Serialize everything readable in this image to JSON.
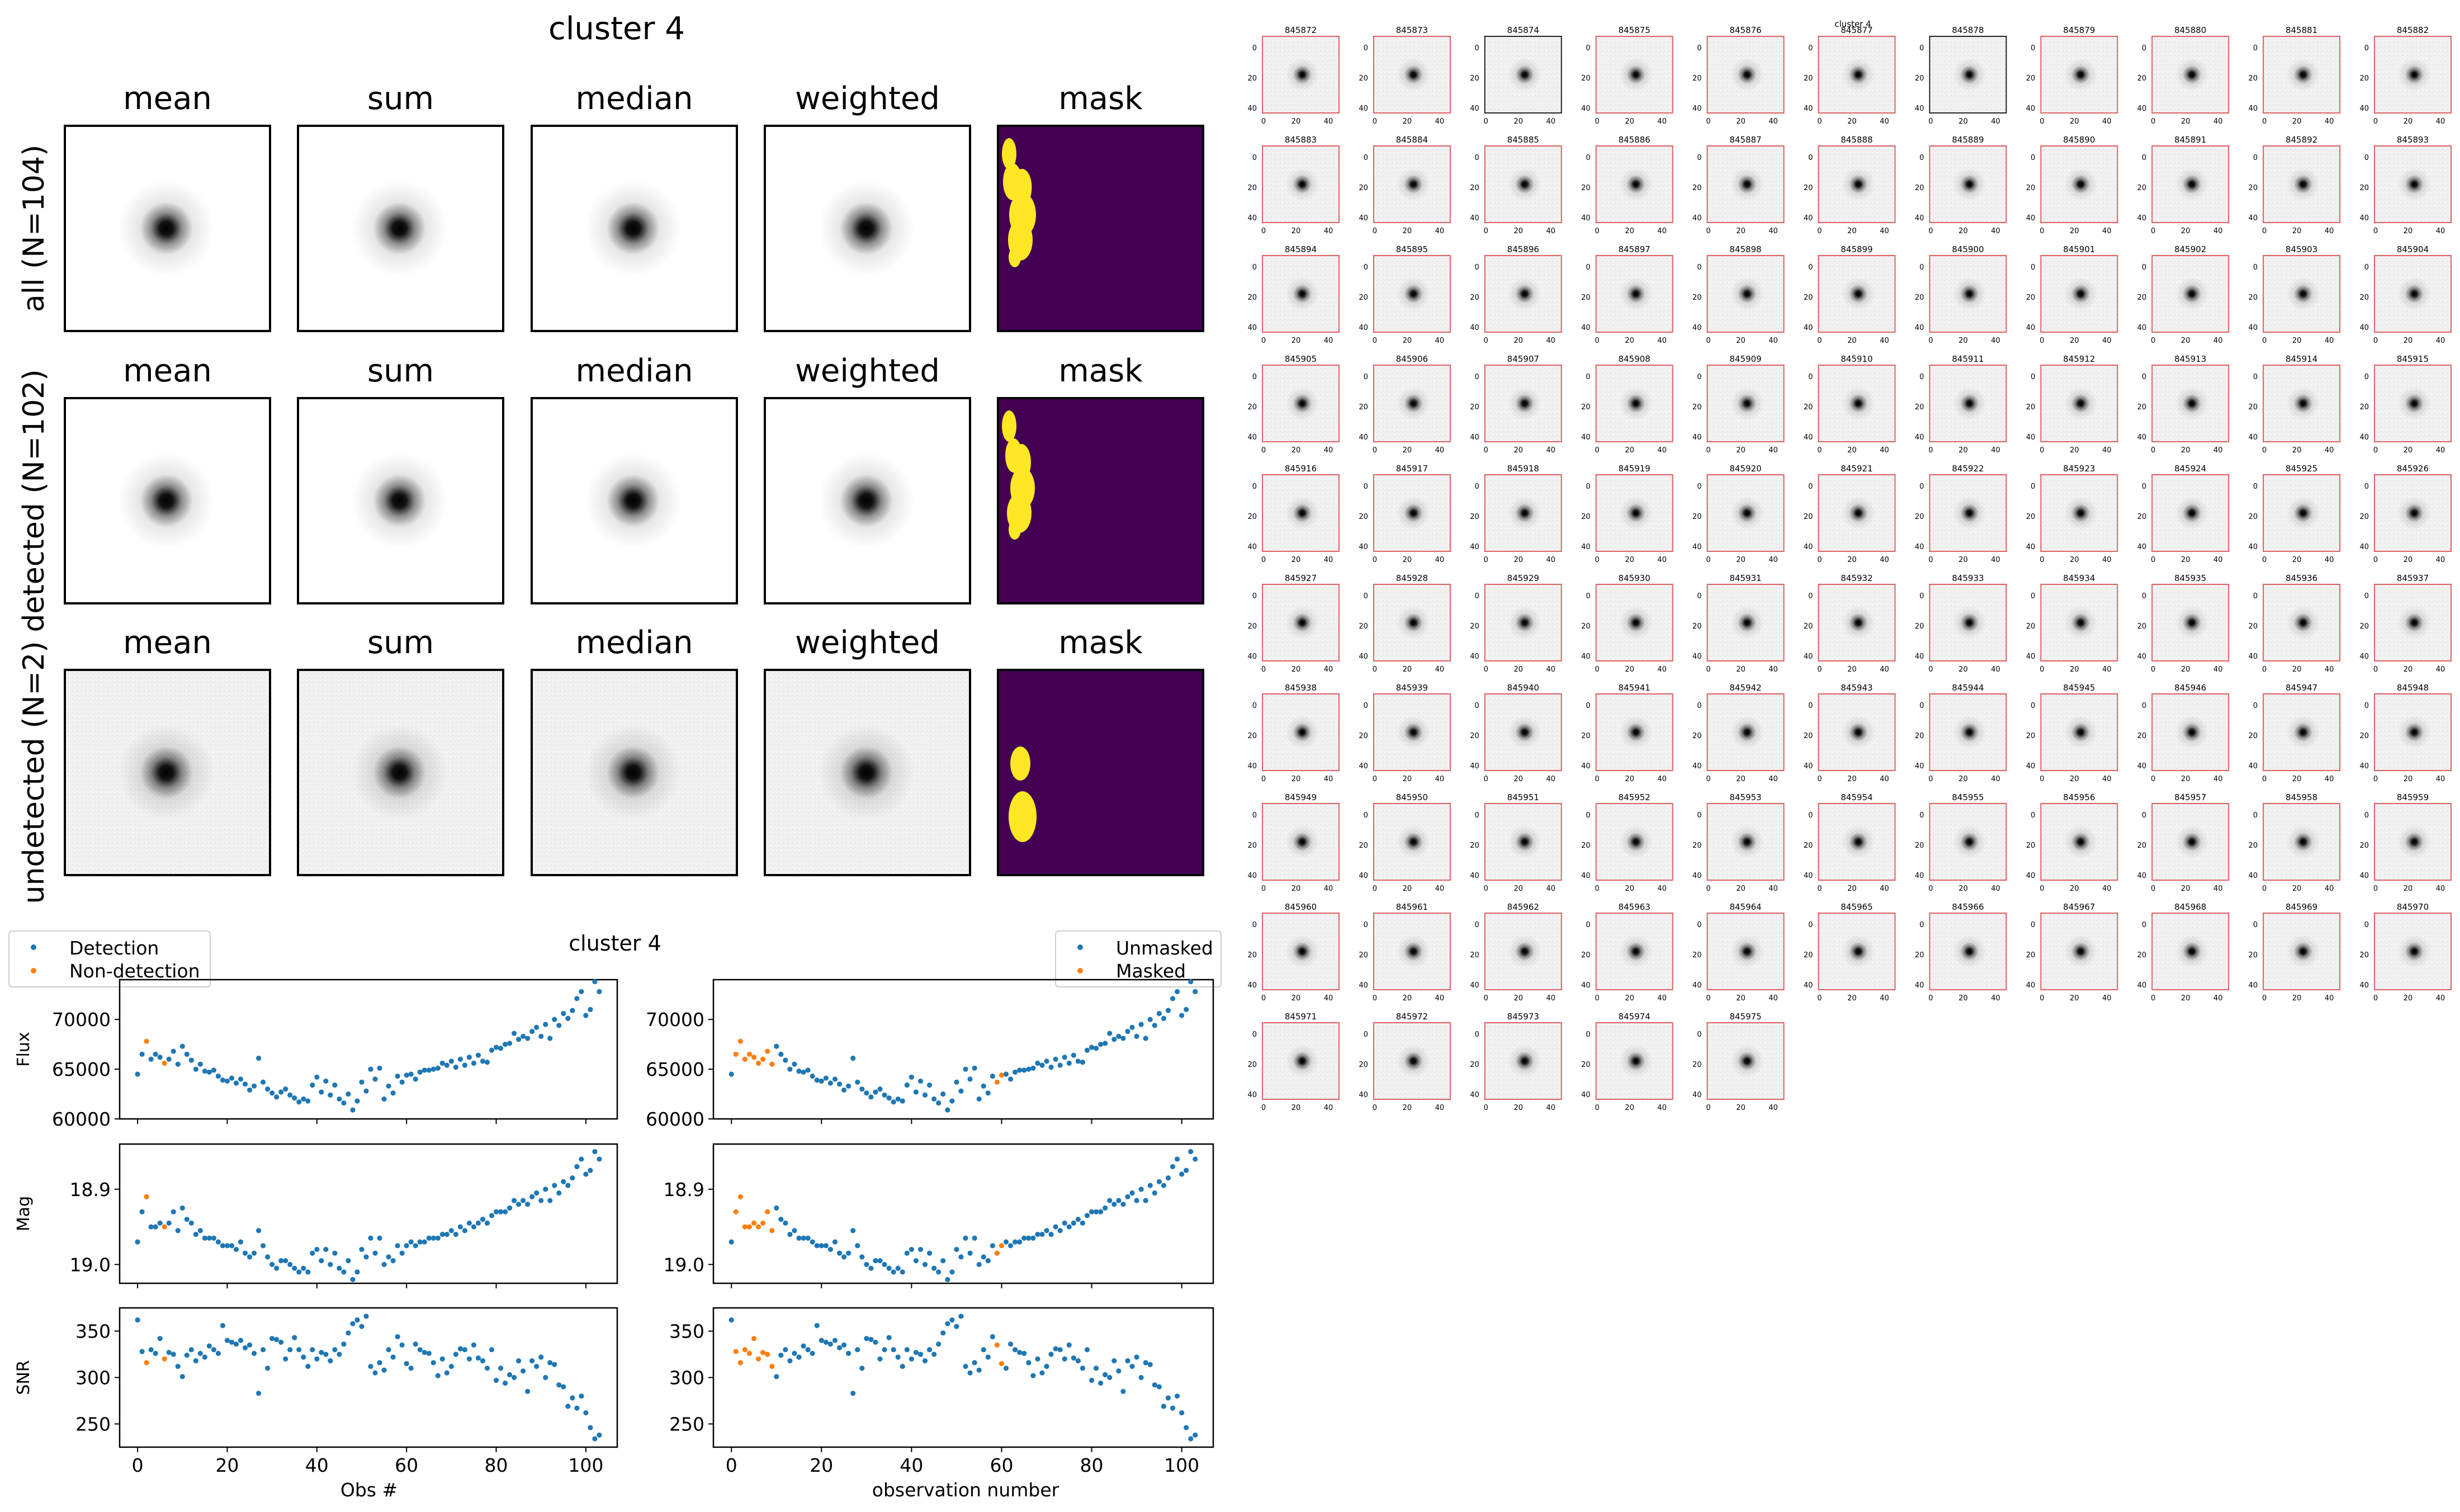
{
  "image_panel": {
    "title": "cluster 4",
    "column_titles": [
      "mean",
      "sum",
      "median",
      "weighted",
      "mask"
    ],
    "row_labels": [
      "all (N=104)",
      "detected (N=102)",
      "undetected (N=2)"
    ]
  },
  "lightcurve_panel": {
    "title": "cluster 4",
    "left_legend": [
      "Detection",
      "Non-detection"
    ],
    "right_legend": [
      "Unmasked",
      "Masked"
    ],
    "left_xlabel": "Obs #",
    "right_xlabel": "observation number",
    "ylabels": [
      "Flux",
      "Mag",
      "SNR"
    ]
  },
  "stamp_grid": {
    "header": "cluster 4",
    "ids": [
      "845872",
      "845873",
      "845874",
      "845875",
      "845876",
      "845877",
      "845878",
      "845879",
      "845880",
      "845881",
      "845882",
      "845883",
      "845884",
      "845885",
      "845886",
      "845887",
      "845888",
      "845889",
      "845890",
      "845891",
      "845892",
      "845893",
      "845894",
      "845895",
      "845896",
      "845897",
      "845898",
      "845899",
      "845900",
      "845901",
      "845902",
      "845903",
      "845904",
      "845905",
      "845906",
      "845907",
      "845908",
      "845909",
      "845910",
      "845911",
      "845912",
      "845913",
      "845914",
      "845915",
      "845916",
      "845917",
      "845918",
      "845919",
      "845920",
      "845921",
      "845922",
      "845923",
      "845924",
      "845925",
      "845926",
      "845927",
      "845928",
      "845929",
      "845930",
      "845931",
      "845932",
      "845933",
      "845934",
      "845935",
      "845936",
      "845937",
      "845938",
      "845939",
      "845940",
      "845941",
      "845942",
      "845943",
      "845944",
      "845945",
      "845946",
      "845947",
      "845948",
      "845949",
      "845950",
      "845951",
      "845952",
      "845953",
      "845954",
      "845955",
      "845956",
      "845957",
      "845958",
      "845959",
      "845960",
      "845961",
      "845962",
      "845963",
      "845964",
      "845965",
      "845966",
      "845967",
      "845968",
      "845969",
      "845970",
      "845971",
      "845972",
      "845973",
      "845974",
      "845975"
    ],
    "ticks": [
      "0",
      "20",
      "40"
    ],
    "undetected_ids": [
      "845874",
      "845878"
    ]
  },
  "chart_data": [
    {
      "type": "scatter",
      "x": [
        0,
        1,
        2,
        3,
        4,
        5,
        6,
        7,
        8,
        9,
        10,
        11,
        12,
        13,
        14,
        15,
        16,
        17,
        18,
        19,
        20,
        21,
        22,
        23,
        24,
        25,
        26,
        27,
        28,
        29,
        30,
        31,
        32,
        33,
        34,
        35,
        36,
        37,
        38,
        39,
        40,
        41,
        42,
        43,
        44,
        45,
        46,
        47,
        48,
        49,
        50,
        51,
        52,
        53,
        54,
        55,
        56,
        57,
        58,
        59,
        60,
        61,
        62,
        63,
        64,
        65,
        66,
        67,
        68,
        69,
        70,
        71,
        72,
        73,
        74,
        75,
        76,
        77,
        78,
        79,
        80,
        81,
        82,
        83,
        84,
        85,
        86,
        87,
        88,
        89,
        90,
        91,
        92,
        93,
        94,
        95,
        96,
        97,
        98,
        99,
        100,
        101,
        102,
        103
      ],
      "series": [
        {
          "name": "Flux",
          "values": [
            64500,
            66500,
            67800,
            66000,
            66500,
            66200,
            65600,
            66000,
            66800,
            65500,
            67300,
            66500,
            65900,
            65000,
            65500,
            64800,
            64700,
            64900,
            64300,
            63900,
            63800,
            64100,
            63600,
            64000,
            63500,
            62900,
            63300,
            66100,
            63700,
            63000,
            62600,
            62200,
            62700,
            63000,
            62400,
            62100,
            61700,
            62000,
            61800,
            63400,
            64200,
            62700,
            63800,
            62400,
            63400,
            62000,
            61600,
            62500,
            60900,
            61800,
            63700,
            62800,
            65000,
            64000,
            65100,
            62000,
            63300,
            62600,
            64300,
            63700,
            64400,
            64500,
            64000,
            64700,
            64900,
            64900,
            65000,
            65100,
            65600,
            65400,
            65800,
            65200,
            66000,
            65400,
            66200,
            65600,
            66400,
            65800,
            65700,
            66900,
            67200,
            67100,
            67500,
            67600,
            68600,
            68000,
            68300,
            68100,
            68800,
            69200,
            68300,
            69500,
            68100,
            70000,
            69400,
            70600,
            70100,
            70900,
            72100,
            72800,
            70400,
            71000,
            73800,
            72800
          ],
          "ylabel": "Flux",
          "ylim": [
            60000,
            74000
          ]
        },
        {
          "name": "Mag",
          "values": [
            18.97,
            18.93,
            18.91,
            18.95,
            18.95,
            18.945,
            18.95,
            18.945,
            18.93,
            18.955,
            18.925,
            18.94,
            18.945,
            18.96,
            18.955,
            18.965,
            18.965,
            18.965,
            18.97,
            18.975,
            18.975,
            18.975,
            18.98,
            18.97,
            18.985,
            18.99,
            18.985,
            18.955,
            18.975,
            18.99,
            19.0,
            19.005,
            18.995,
            18.995,
            19.0,
            19.005,
            19.01,
            19.005,
            19.01,
            18.985,
            18.98,
            18.995,
            18.98,
            19.0,
            18.985,
            19.005,
            19.01,
            18.995,
            19.02,
            19.01,
            18.98,
            18.99,
            18.965,
            18.985,
            18.965,
            19.0,
            18.99,
            18.995,
            18.975,
            18.985,
            18.975,
            18.97,
            18.975,
            18.97,
            18.97,
            18.965,
            18.965,
            18.965,
            18.96,
            18.96,
            18.955,
            18.96,
            18.95,
            18.955,
            18.945,
            18.95,
            18.945,
            18.94,
            18.945,
            18.935,
            18.93,
            18.93,
            18.93,
            18.925,
            18.915,
            18.92,
            18.915,
            18.92,
            18.91,
            18.905,
            18.915,
            18.9,
            18.915,
            18.895,
            18.905,
            18.89,
            18.895,
            18.885,
            18.87,
            18.86,
            18.88,
            18.875,
            18.85,
            18.86
          ],
          "ylabel": "Mag",
          "ylim": [
            19.025,
            18.84
          ],
          "inverted": true
        },
        {
          "name": "SNR",
          "values": [
            362,
            328,
            316,
            330,
            326,
            342,
            320,
            327,
            325,
            312,
            301,
            324,
            330,
            318,
            326,
            322,
            334,
            330,
            326,
            356,
            340,
            338,
            336,
            340,
            332,
            335,
            326,
            283,
            330,
            310,
            342,
            341,
            338,
            320,
            330,
            343,
            330,
            322,
            312,
            330,
            320,
            327,
            325,
            318,
            330,
            325,
            336,
            348,
            358,
            362,
            355,
            366,
            312,
            305,
            316,
            308,
            330,
            322,
            344,
            335,
            315,
            310,
            336,
            330,
            327,
            326,
            316,
            302,
            320,
            305,
            312,
            325,
            331,
            330,
            320,
            335,
            321,
            318,
            310,
            330,
            297,
            310,
            294,
            303,
            300,
            318,
            307,
            285,
            318,
            312,
            322,
            300,
            316,
            314,
            292,
            290,
            269,
            278,
            267,
            280,
            262,
            246,
            234,
            238
          ],
          "ylabel": "SNR",
          "ylim": [
            225,
            375
          ]
        }
      ],
      "left_highlight_indices": [
        2,
        6
      ],
      "right_highlight_indices": [
        1,
        2,
        3,
        4,
        5,
        6,
        7,
        8,
        9,
        59,
        60
      ],
      "xlim": [
        -4,
        107
      ],
      "xticks": [
        0,
        20,
        40,
        60,
        80,
        100
      ],
      "flux_ticks": [
        60000,
        65000,
        70000
      ],
      "mag_ticks": [
        18.9,
        19.0
      ],
      "snr_ticks": [
        250,
        300,
        350
      ]
    }
  ],
  "colors": {
    "detection": "#1f77b4",
    "nondetection": "#ff7f0e",
    "mask_bg": "#440154",
    "mask_fg": "#fde725",
    "stamp_border": "#e06060"
  }
}
